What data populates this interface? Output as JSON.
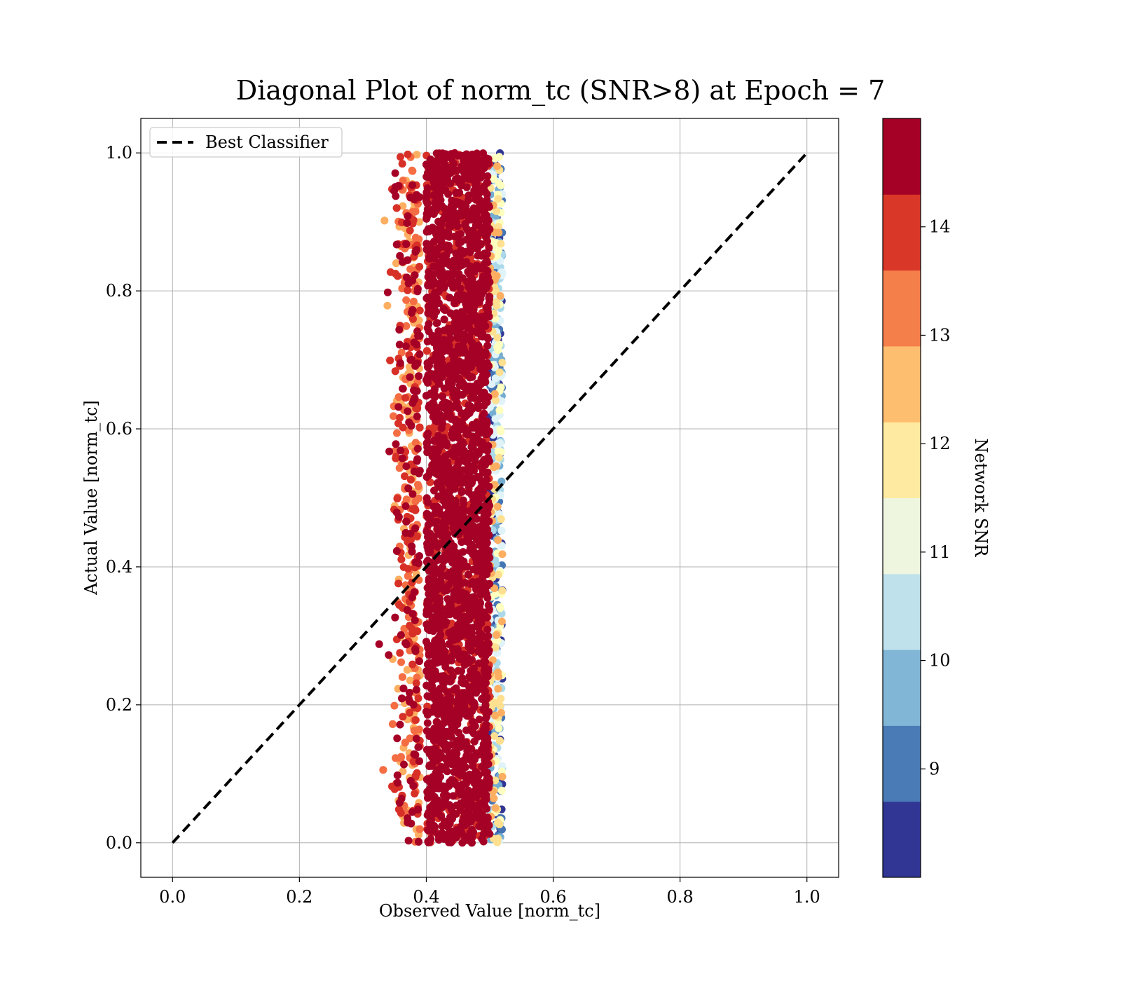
{
  "chart_data": {
    "type": "scatter",
    "title": "Diagonal Plot of norm_tc (SNR>8) at Epoch = 7",
    "xlabel": "Observed Value [norm_tc]",
    "ylabel": "Actual Value [norm_tc]",
    "xlim": [
      -0.05,
      1.05
    ],
    "ylim": [
      -0.05,
      1.05
    ],
    "xticks": [
      "0.0",
      "0.2",
      "0.4",
      "0.6",
      "0.8",
      "1.0"
    ],
    "yticks": [
      "0.0",
      "0.2",
      "0.4",
      "0.6",
      "0.8",
      "1.0"
    ],
    "grid": true,
    "legend": {
      "position": "top-left",
      "entries": [
        "Best Classifier"
      ]
    },
    "reference_line": {
      "name": "Best Classifier",
      "style": "dashed",
      "color": "#000000",
      "x": [
        0.0,
        1.0
      ],
      "y": [
        0.0,
        1.0
      ]
    },
    "points_distribution": {
      "x_range": [
        0.31,
        0.52
      ],
      "x_core_range": [
        0.4,
        0.5
      ],
      "y_range": [
        0.0,
        1.0
      ]
    },
    "colorbar": {
      "label": "Network SNR",
      "range": [
        8,
        15
      ],
      "tick_values": [
        9,
        10,
        11,
        12,
        13,
        14
      ],
      "tick_labels": [
        "9",
        "10",
        "11",
        "12",
        "13",
        "14"
      ],
      "colormap": "RdYlBu_r",
      "colors": [
        "#313695",
        "#4575b4",
        "#74add1",
        "#abd9e9",
        "#e0f3f8",
        "#ffffbf",
        "#fee090",
        "#fdae61",
        "#f46d43",
        "#d73027",
        "#a50026"
      ],
      "band_colors": [
        "#313695",
        "#4a7bb7",
        "#81b6d6",
        "#bfe1ec",
        "#eef6e0",
        "#feeaa0",
        "#fdbe70",
        "#f57f4b",
        "#d93829",
        "#a50026"
      ]
    }
  }
}
